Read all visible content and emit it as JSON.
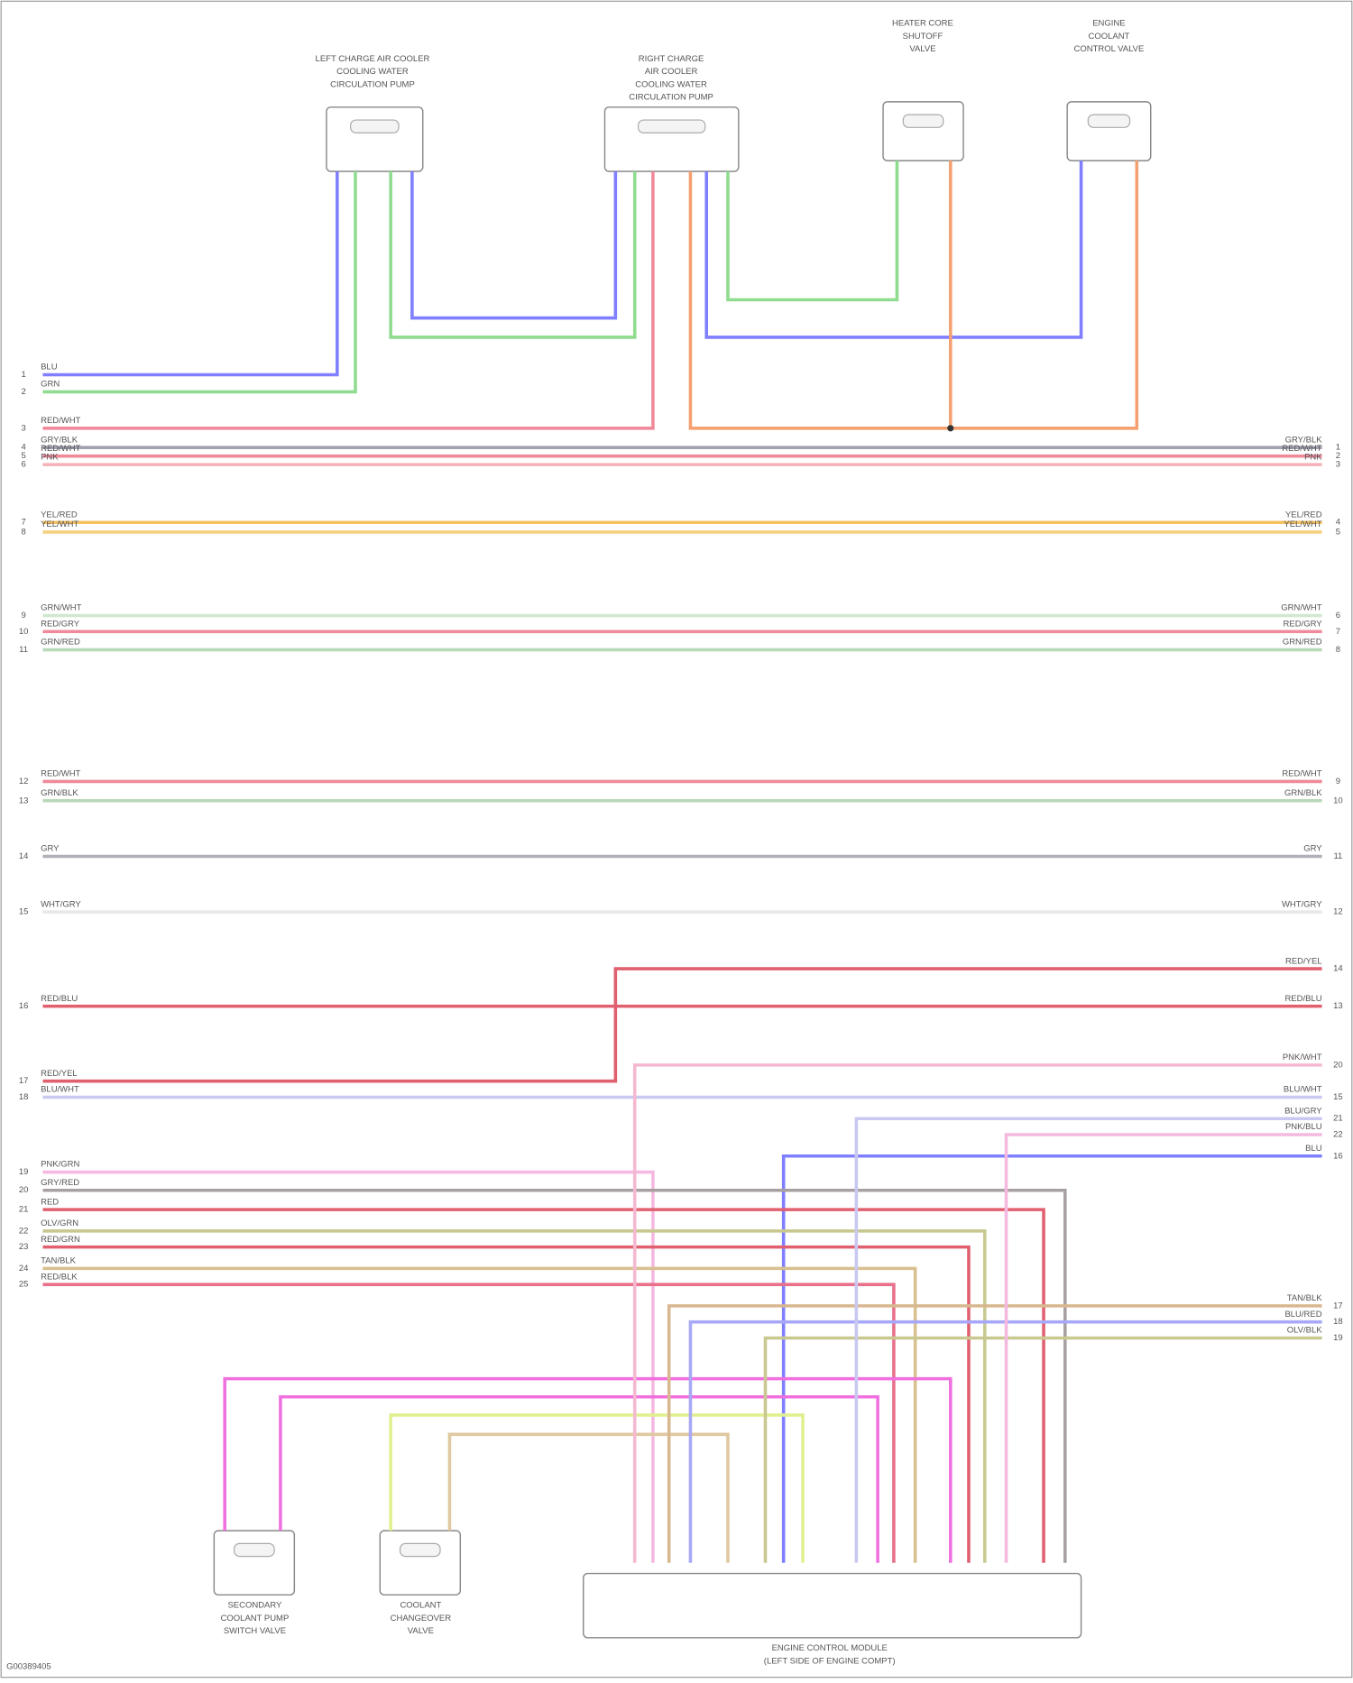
{
  "diagram": {
    "footer": "G00389405",
    "components": [
      {
        "label": [
          "LEFT CHARGE AIR COOLER",
          "COOLING WATER",
          "CIRCULATION PUMP"
        ]
      },
      {
        "label": [
          "RIGHT CHARGE",
          "AIR COOLER",
          "COOLING WATER",
          "CIRCULATION PUMP"
        ]
      },
      {
        "label": [
          "HEATER CORE",
          "SHUTOFF",
          "VALVE"
        ]
      },
      {
        "label": [
          "ENGINE",
          "COOLANT",
          "CONTROL VALVE"
        ]
      },
      {
        "label": [
          "SECONDARY",
          "COOLANT PUMP",
          "SWITCH VALVE"
        ]
      },
      {
        "label": [
          "COOLANT",
          "CHANGEOVER",
          "VALVE"
        ]
      },
      {
        "label": [
          "ENGINE CONTROL MODULE",
          "(LEFT SIDE OF ENGINE COMPT)"
        ]
      }
    ],
    "wires": [
      {
        "color": "#7f7fff",
        "label_left": "BLU",
        "pin_left": "1"
      },
      {
        "color": "#8fdc8f",
        "label_left": "GRN",
        "pin_left": "2"
      },
      {
        "color": "#f08a9a",
        "label_left": "RED/WHT",
        "pin_left": "3"
      },
      {
        "color": "#a0a0b0",
        "label_left": "GRY/BLK",
        "label_right": "GRY/BLK",
        "pin_left": "4",
        "pin_right": "1"
      },
      {
        "color": "#f08a9a",
        "label_left": "RED/WHT",
        "label_right": "RED/WHT",
        "pin_left": "5",
        "pin_right": "2"
      },
      {
        "color": "#f5b0b8",
        "label_left": "PNK",
        "label_right": "PNK",
        "pin_left": "6",
        "pin_right": "3"
      },
      {
        "color": "#f5c060",
        "label_left": "YEL/RED",
        "label_right": "YEL/RED",
        "pin_left": "7",
        "pin_right": "4"
      },
      {
        "color": "#f5d080",
        "label_left": "YEL/WHT",
        "label_right": "YEL/WHT",
        "pin_left": "8",
        "pin_right": "5"
      },
      {
        "color": "#cfe8cf",
        "label_left": "GRN/WHT",
        "label_right": "GRN/WHT",
        "pin_left": "9",
        "pin_right": "6"
      },
      {
        "color": "#f08a9a",
        "label_left": "RED/GRY",
        "label_right": "RED/GRY",
        "pin_left": "10",
        "pin_right": "7"
      },
      {
        "color": "#b8d8b8",
        "label_left": "GRN/RED",
        "label_right": "GRN/RED",
        "pin_left": "11",
        "pin_right": "8"
      },
      {
        "color": "#f08a9a",
        "label_left": "RED/WHT",
        "label_right": "RED/WHT",
        "pin_left": "12",
        "pin_right": "9"
      },
      {
        "color": "#b8d8b8",
        "label_left": "GRN/BLK",
        "label_right": "GRN/BLK",
        "pin_left": "13",
        "pin_right": "10"
      },
      {
        "color": "#b0b0b8",
        "label_left": "GRY",
        "label_right": "GRY",
        "pin_left": "14",
        "pin_right": "11"
      },
      {
        "color": "#e8e8e8",
        "label_left": "WHT/GRY",
        "label_right": "WHT/GRY",
        "pin_left": "15",
        "pin_right": "12"
      },
      {
        "color": "#e06070",
        "label_left": "RED/BLU",
        "label_right": "RED/BLU",
        "pin_left": "16",
        "pin_right": "13"
      },
      {
        "color": "#e06070",
        "label_left": "RED/YEL",
        "label_right": "RED/YEL",
        "pin_left": "17",
        "pin_right": "14"
      },
      {
        "color": "#c8c8f0",
        "label_left": "BLU/WHT",
        "label_right": "BLU/WHT",
        "pin_left": "18",
        "pin_right": "15"
      },
      {
        "color": "#7f7fff",
        "label_right": "BLU",
        "pin_right": "16"
      },
      {
        "color": "#f5b8e0",
        "label_left": "PNK/GRN",
        "pin_left": "19"
      },
      {
        "color": "#a8a0a0",
        "label_left": "GRY/RED",
        "pin_left": "20"
      },
      {
        "color": "#e06070",
        "label_left": "RED",
        "pin_left": "21"
      },
      {
        "color": "#c8c890",
        "label_left": "OLV/GRN",
        "pin_left": "22"
      },
      {
        "color": "#e06070",
        "label_left": "RED/GRN",
        "pin_left": "23"
      },
      {
        "color": "#d8c090",
        "label_left": "TAN/BLK",
        "pin_left": "24"
      },
      {
        "color": "#e8708a",
        "label_left": "RED/BLK",
        "pin_left": "25"
      },
      {
        "color": "#f070e0"
      },
      {
        "color": "#f070e0"
      },
      {
        "color": "#e0f090"
      },
      {
        "color": "#e0c8a0"
      },
      {
        "color": "#7f7fff"
      },
      {
        "color": "#8fdc8f"
      },
      {
        "color": "#8fdc8f"
      },
      {
        "color": "#7f7fff"
      },
      {
        "color": "#f5a070"
      },
      {
        "color": "#f5a070"
      },
      {
        "color": "#d8b890",
        "label_right": "TAN/BLK",
        "pin_right": "17"
      },
      {
        "color": "#a8a8f8",
        "label_right": "BLU/RED",
        "pin_right": "18"
      },
      {
        "color": "#c8c890",
        "label_right": "OLV/BLK",
        "pin_right": "19"
      },
      {
        "color": "#f5b8d0",
        "label_right": "PNK/WHT",
        "pin_right": "20"
      },
      {
        "color": "#c8c8f0",
        "label_right": "BLU/GRY",
        "pin_right": "21"
      },
      {
        "color": "#f5b8e0",
        "label_right": "PNK/BLU",
        "pin_right": "22"
      }
    ]
  }
}
